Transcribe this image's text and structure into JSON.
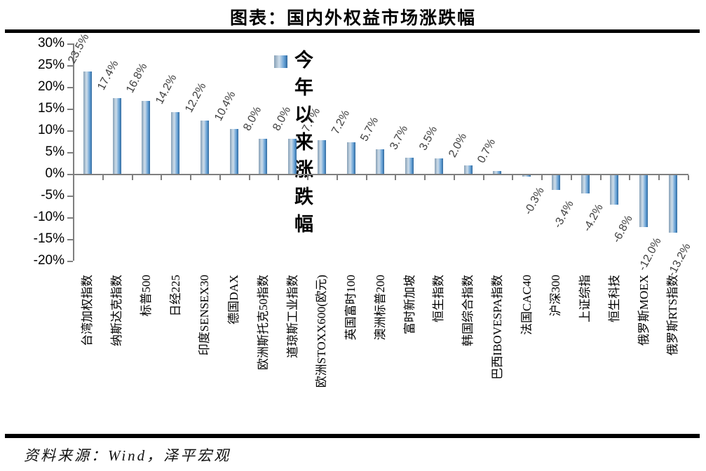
{
  "title": "图表：国内外权益市场涨跌幅",
  "legend": {
    "label": "今年以来涨跌幅",
    "marker_color": "#5d9bd2"
  },
  "source": "资料来源：Wind，泽平宏观",
  "colors": {
    "bar_main": "#5d9bd2",
    "bar_edge_dark": "#31689b",
    "bar_edge_light": "#cfdeeb",
    "axis_gray": "#7f7f7f",
    "value_label": "#3f3f3f",
    "rule_black": "#000000"
  },
  "chart_data": {
    "type": "bar",
    "title": "图表：国内外权益市场涨跌幅",
    "legend_entries": [
      "今年以来涨跌幅"
    ],
    "legend_position": "top-center",
    "grid": false,
    "unit": "%",
    "ylim": [
      -20,
      30
    ],
    "ytick_step": 5,
    "ytick_labels": [
      "30%",
      "25%",
      "20%",
      "15%",
      "10%",
      "5%",
      "0%",
      "-5%",
      "-10%",
      "-15%",
      "-20%"
    ],
    "categories": [
      "台湾加权指数",
      "纳斯达克指数",
      "标普500",
      "日经225",
      "印度SENSEX30",
      "德国DAX",
      "欧洲斯托克50指数",
      "道琼斯工业指数",
      "欧洲STOXX600(欧元)",
      "英国富时100",
      "澳洲标普200",
      "富时新加坡",
      "恒生指数",
      "韩国综合指数",
      "巴西IBOVESPA指数",
      "法国CAC40",
      "沪深300",
      "上证综指",
      "恒生科技",
      "俄罗斯MOEX",
      "俄罗斯RTS指数"
    ],
    "series": [
      {
        "name": "今年以来涨跌幅",
        "values": [
          23.5,
          17.4,
          16.8,
          14.2,
          12.2,
          10.4,
          8.0,
          8.0,
          7.7,
          7.2,
          5.7,
          3.7,
          3.5,
          2.0,
          0.7,
          -0.3,
          -3.4,
          -4.2,
          -6.8,
          -12.0,
          -13.2
        ],
        "value_labels": [
          "23.5%",
          "17.4%",
          "16.8%",
          "14.2%",
          "12.2%",
          "10.4%",
          "8.0%",
          "8.0%",
          "7.7%",
          "7.2%",
          "5.7%",
          "3.7%",
          "3.5%",
          "2.0%",
          "0.7%",
          "-0.3%",
          "-3.4%",
          "-4.2%",
          "-6.8%",
          "-12.0%",
          "-13.2%"
        ]
      }
    ]
  }
}
